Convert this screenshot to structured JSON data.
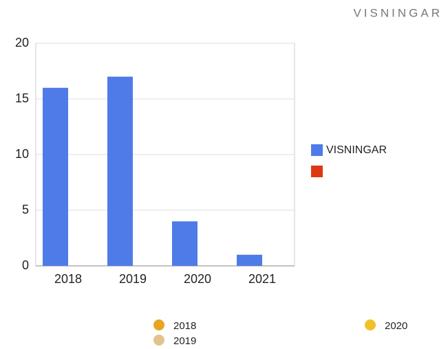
{
  "chart_data": {
    "type": "bar",
    "title": "VISNINGAR",
    "categories": [
      "2018",
      "2019",
      "2020",
      "2021"
    ],
    "series": [
      {
        "name": "VISNINGAR",
        "color": "#4f7be8",
        "values": [
          16,
          17,
          4,
          1
        ]
      },
      {
        "color": "#dc3912",
        "values": [
          null,
          null,
          null,
          null
        ]
      }
    ],
    "ylim": [
      0,
      20
    ],
    "yticks": [
      0,
      5,
      10,
      15,
      20
    ],
    "grid": true,
    "legend": "right"
  },
  "bottom_legend": [
    {
      "label": "2018",
      "color": "#e8a520"
    },
    {
      "label": "2019",
      "color": "#e2c48a"
    },
    {
      "label": "2020",
      "color": "#f0c22a"
    }
  ]
}
